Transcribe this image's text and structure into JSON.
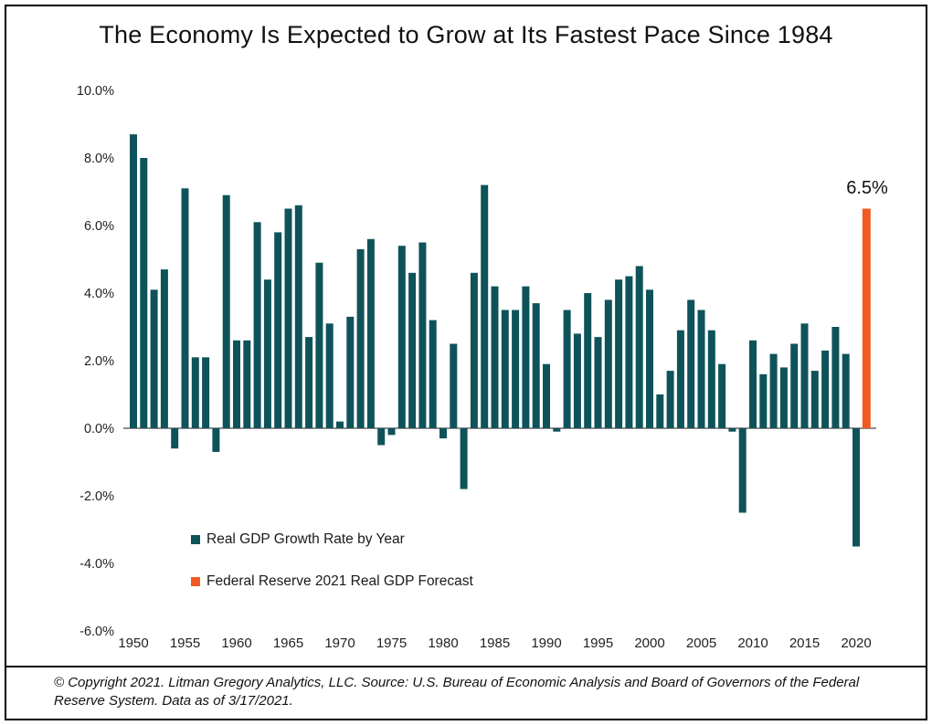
{
  "title": "The Economy Is Expected to Grow at Its Fastest Pace Since 1984",
  "chart_data": {
    "type": "bar",
    "title": "The Economy Is Expected to Grow at Its Fastest Pace Since 1984",
    "xlabel": "",
    "ylabel": "",
    "ylim": [
      -6.0,
      10.0
    ],
    "grid": false,
    "legend_position": "inside-lower-left",
    "y_ticks": [
      10.0,
      8.0,
      6.0,
      4.0,
      2.0,
      0.0,
      -2.0,
      -4.0,
      -6.0
    ],
    "y_tick_labels": [
      "10.0%",
      "8.0%",
      "6.0%",
      "4.0%",
      "2.0%",
      "0.0%",
      "-2.0%",
      "-4.0%",
      "-6.0%"
    ],
    "x_tick_labels": [
      "1950",
      "1955",
      "1960",
      "1965",
      "1970",
      "1975",
      "1980",
      "1985",
      "1990",
      "1995",
      "2000",
      "2005",
      "2010",
      "2015",
      "2020"
    ],
    "series": [
      {
        "name": "Real GDP Growth Rate by Year",
        "color": "#0f535a",
        "years": [
          1950,
          1951,
          1952,
          1953,
          1954,
          1955,
          1956,
          1957,
          1958,
          1959,
          1960,
          1961,
          1962,
          1963,
          1964,
          1965,
          1966,
          1967,
          1968,
          1969,
          1970,
          1971,
          1972,
          1973,
          1974,
          1975,
          1976,
          1977,
          1978,
          1979,
          1980,
          1981,
          1982,
          1983,
          1984,
          1985,
          1986,
          1987,
          1988,
          1989,
          1990,
          1991,
          1992,
          1993,
          1994,
          1995,
          1996,
          1997,
          1998,
          1999,
          2000,
          2001,
          2002,
          2003,
          2004,
          2005,
          2006,
          2007,
          2008,
          2009,
          2010,
          2011,
          2012,
          2013,
          2014,
          2015,
          2016,
          2017,
          2018,
          2019,
          2020
        ],
        "values": [
          8.7,
          8.0,
          4.1,
          4.7,
          -0.6,
          7.1,
          2.1,
          2.1,
          -0.7,
          6.9,
          2.6,
          2.6,
          6.1,
          4.4,
          5.8,
          6.5,
          6.6,
          2.7,
          4.9,
          3.1,
          0.2,
          3.3,
          5.3,
          5.6,
          -0.5,
          -0.2,
          5.4,
          4.6,
          5.5,
          3.2,
          -0.3,
          2.5,
          -1.8,
          4.6,
          7.2,
          4.2,
          3.5,
          3.5,
          4.2,
          3.7,
          1.9,
          -0.1,
          3.5,
          2.8,
          4.0,
          2.7,
          3.8,
          4.4,
          4.5,
          4.8,
          4.1,
          1.0,
          1.7,
          2.9,
          3.8,
          3.5,
          2.9,
          1.9,
          -0.1,
          -2.5,
          2.6,
          1.6,
          2.2,
          1.8,
          2.5,
          3.1,
          1.7,
          2.3,
          3.0,
          2.2,
          -3.5
        ]
      },
      {
        "name": "Federal Reserve 2021 Real GDP Forecast",
        "color": "#f15a22",
        "years": [
          2021
        ],
        "values": [
          6.5
        ]
      }
    ],
    "annotation": {
      "text": "6.5%",
      "year": 2021,
      "value": 6.5
    }
  },
  "footer": {
    "text": "© Copyright 2021. Litman Gregory Analytics, LLC. Source: U.S. Bureau of Economic Analysis and Board of Governors of the Federal Reserve System. Data as of 3/17/2021."
  }
}
